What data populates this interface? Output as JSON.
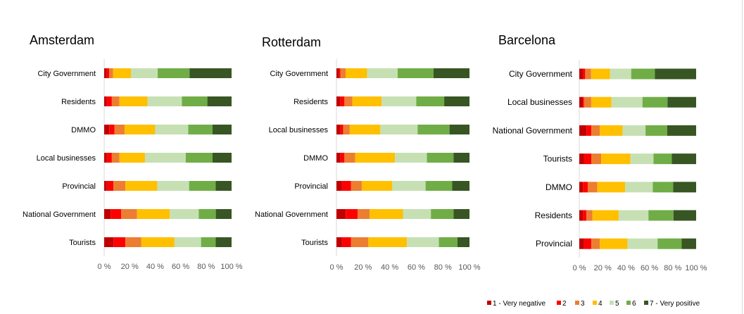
{
  "colors": {
    "1": "#c00000",
    "2": "#ff0000",
    "3": "#ed7d31",
    "4": "#ffc000",
    "5": "#c6e0b4",
    "6": "#70ad47",
    "7": "#375623"
  },
  "legend": {
    "items": [
      {
        "key": "1",
        "label": "1 - Very negative"
      },
      {
        "key": "2",
        "label": "2"
      },
      {
        "key": "3",
        "label": "3"
      },
      {
        "key": "4",
        "label": "4"
      },
      {
        "key": "5",
        "label": "5"
      },
      {
        "key": "6",
        "label": "6"
      },
      {
        "key": "7",
        "label": "7 - Very positive"
      }
    ]
  },
  "chart_data": [
    {
      "type": "bar",
      "orientation": "horizontal",
      "stacked": "percent",
      "title": "Amsterdam",
      "xlim": [
        0,
        100
      ],
      "x_ticks": [
        "0 %",
        "20 %",
        "40 %",
        "60 %",
        "80 %",
        "100 %"
      ],
      "categories": [
        "City Government",
        "Residents",
        "DMMO",
        "Local businesses",
        "Provincial",
        "National Government",
        "Tourists"
      ],
      "series": [
        {
          "name": "1 - Very negative",
          "values": [
            2,
            2,
            4,
            2,
            2,
            5,
            7
          ]
        },
        {
          "name": "2",
          "values": [
            2,
            4,
            4,
            4,
            5,
            8,
            9
          ]
        },
        {
          "name": "3",
          "values": [
            3,
            6,
            8,
            6,
            9,
            12,
            12
          ]
        },
        {
          "name": "4",
          "values": [
            14,
            22,
            24,
            20,
            24,
            25,
            25
          ]
        },
        {
          "name": "5",
          "values": [
            21,
            27,
            26,
            32,
            24,
            22,
            20
          ]
        },
        {
          "name": "6",
          "values": [
            25,
            20,
            19,
            21,
            20,
            13,
            11
          ]
        },
        {
          "name": "7 - Very positive",
          "values": [
            33,
            19,
            15,
            15,
            12,
            12,
            12
          ]
        }
      ]
    },
    {
      "type": "bar",
      "orientation": "horizontal",
      "stacked": "percent",
      "title": "Rotterdam",
      "xlim": [
        0,
        100
      ],
      "x_ticks": [
        "0 %",
        "20 %",
        "40 %",
        "60 %",
        "80 %",
        "100 %"
      ],
      "categories": [
        "City Government",
        "Residents",
        "Local businesses",
        "DMMO",
        "Provincial",
        "National Government",
        "Tourists"
      ],
      "series": [
        {
          "name": "1 - Very negative",
          "values": [
            2,
            3,
            3,
            3,
            4,
            7,
            4
          ]
        },
        {
          "name": "2",
          "values": [
            1,
            3,
            2,
            3,
            7,
            9,
            7
          ]
        },
        {
          "name": "3",
          "values": [
            4,
            6,
            5,
            8,
            8,
            9,
            13
          ]
        },
        {
          "name": "4",
          "values": [
            16,
            22,
            23,
            30,
            23,
            25,
            29
          ]
        },
        {
          "name": "5",
          "values": [
            23,
            26,
            28,
            24,
            25,
            21,
            24
          ]
        },
        {
          "name": "6",
          "values": [
            27,
            21,
            24,
            20,
            20,
            17,
            14
          ]
        },
        {
          "name": "7 - Very positive",
          "values": [
            27,
            19,
            15,
            12,
            13,
            12,
            9
          ]
        }
      ]
    },
    {
      "type": "bar",
      "orientation": "horizontal",
      "stacked": "percent",
      "title": "Barcelona",
      "xlim": [
        0,
        100
      ],
      "x_ticks": [
        "0 %",
        "20 %",
        "40 %",
        "60 %",
        "80 %",
        "100 %"
      ],
      "categories": [
        "City Government",
        "Local businesses",
        "National Government",
        "Tourists",
        "DMMO",
        "Residents",
        "Provincial"
      ],
      "series": [
        {
          "name": "1 - Very negative",
          "values": [
            3,
            3,
            6,
            4,
            3,
            3,
            4
          ]
        },
        {
          "name": "2",
          "values": [
            2,
            1,
            4,
            6,
            4,
            3,
            6
          ]
        },
        {
          "name": "3",
          "values": [
            5,
            6,
            7,
            8,
            8,
            5,
            7
          ]
        },
        {
          "name": "4",
          "values": [
            16,
            17,
            19,
            24,
            23,
            22,
            23
          ]
        },
        {
          "name": "5",
          "values": [
            18,
            26,
            19,
            19,
            23,
            25,
            25
          ]
        },
        {
          "name": "6",
          "values": [
            20,
            21,
            18,
            15,
            17,
            21,
            20
          ]
        },
        {
          "name": "7 - Very positive",
          "values": [
            35,
            24,
            24,
            20,
            19,
            19,
            12
          ]
        }
      ]
    }
  ]
}
